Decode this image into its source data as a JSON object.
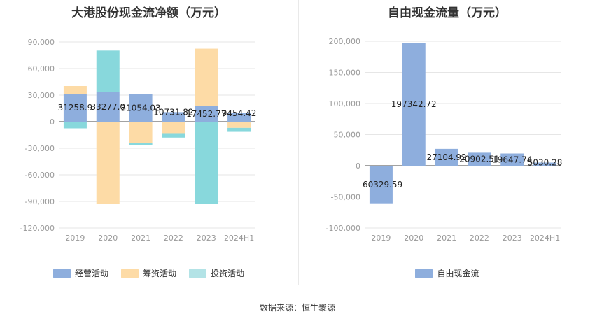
{
  "source_text": "数据来源：恒生聚源",
  "chart_data": [
    {
      "type": "bar",
      "stacked": true,
      "title": "大港股份现金流净额（万元）",
      "categories": [
        "2019",
        "2020",
        "2021",
        "2022",
        "2023",
        "2024H1"
      ],
      "yticks": [
        "90,000",
        "60,000",
        "30,000",
        "0",
        "-30,000",
        "-60,000",
        "-90,000",
        "-120,000"
      ],
      "ylim": [
        -120000,
        90000
      ],
      "series": [
        {
          "name": "经营活动",
          "color": "#8eaedd",
          "values": [
            31258.9,
            33277.0,
            31054.03,
            10731.82,
            17452.77,
            9454.42
          ]
        },
        {
          "name": "筹资活动",
          "color": "#fddba6",
          "values": [
            9000,
            -93000,
            -24000,
            -13000,
            65000,
            -7000
          ]
        },
        {
          "name": "投资活动",
          "color": "#88d8dc",
          "values": [
            -7500,
            47000,
            -2500,
            -5000,
            -93000,
            -4500
          ]
        }
      ],
      "data_labels": [
        "31258.9",
        "33277.0",
        "31054.03",
        "10731.82",
        "17452.77",
        "9454.42"
      ]
    },
    {
      "type": "bar",
      "title": "自由现金流量（万元）",
      "categories": [
        "2019",
        "2020",
        "2021",
        "2022",
        "2023",
        "2024H1"
      ],
      "yticks": [
        "200,000",
        "150,000",
        "100,000",
        "50,000",
        "0",
        "-50,000",
        "-100,000"
      ],
      "ylim": [
        -100000,
        200000
      ],
      "series": [
        {
          "name": "自由现金流",
          "color": "#8eaedd",
          "values": [
            -60329.59,
            197342.72,
            27104.92,
            20902.51,
            19647.74,
            5030.28
          ]
        }
      ],
      "data_labels": [
        "-60329.59",
        "197342.72",
        "27104.92",
        "20902.51",
        "19647.74",
        "5030.28"
      ]
    }
  ]
}
